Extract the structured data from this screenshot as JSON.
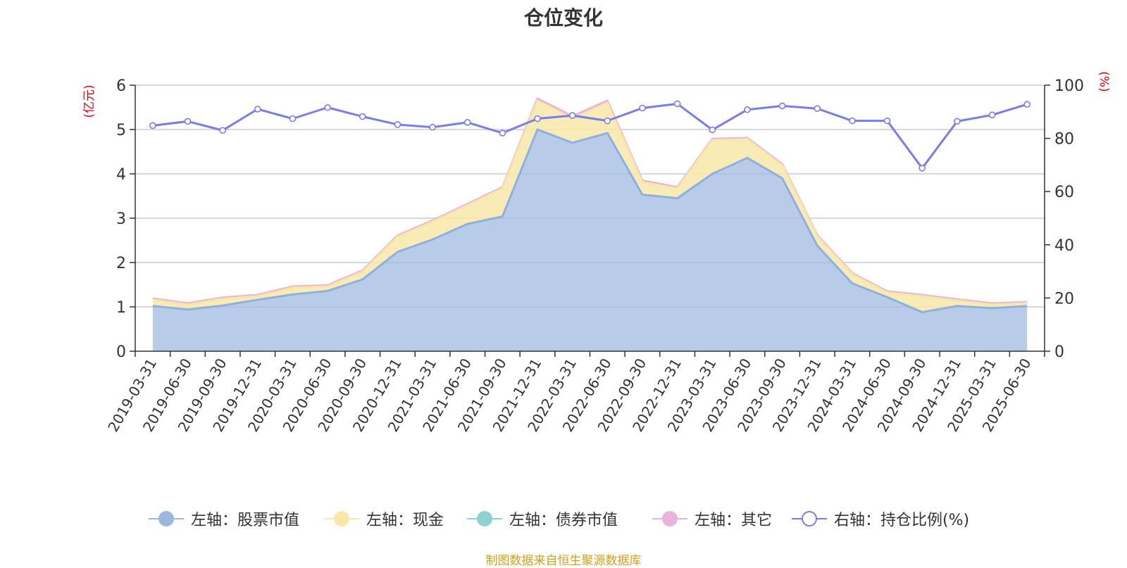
{
  "title": "仓位变化",
  "source_note": "制图数据来自恒生聚源数据库",
  "colors": {
    "stock": "#9cb8e2",
    "stock_line": "#8fb0dc",
    "cash": "#f8e7a8",
    "bond": "#8fd3d1",
    "other": "#e6b4dd",
    "ratio": "#7b7bf0",
    "axis_unit": "#e00000"
  },
  "legend": [
    {
      "label": "左轴：股票市值",
      "color": "#9cb8e2",
      "style": "filled"
    },
    {
      "label": "左轴：现金",
      "color": "#f8e7a8",
      "style": "filled"
    },
    {
      "label": "左轴：债券市值",
      "color": "#8fd3d1",
      "style": "filled"
    },
    {
      "label": "左轴：其它",
      "color": "#e6b4dd",
      "style": "filled"
    },
    {
      "label": "右轴：持仓比例(%)",
      "color": "#7b7bf0",
      "style": "hollow"
    }
  ],
  "chart_data": {
    "type": "area",
    "title": "仓位变化",
    "left_axis": {
      "unit": "(亿元)",
      "ylim": [
        0,
        6
      ],
      "ticks": [
        0,
        1,
        2,
        3,
        4,
        5,
        6
      ]
    },
    "right_axis": {
      "unit": "(%)",
      "ylim": [
        0,
        100
      ],
      "ticks": [
        0,
        20,
        40,
        60,
        80,
        100
      ]
    },
    "grid": true,
    "legend_position": "bottom",
    "categories": [
      "2019-03-31",
      "2019-06-30",
      "2019-09-30",
      "2019-12-31",
      "2020-03-31",
      "2020-06-30",
      "2020-09-30",
      "2020-12-31",
      "2021-03-31",
      "2021-06-30",
      "2021-09-30",
      "2021-12-31",
      "2022-03-31",
      "2022-06-30",
      "2022-09-30",
      "2022-12-31",
      "2023-03-31",
      "2023-06-30",
      "2023-09-30",
      "2023-12-31",
      "2024-03-31",
      "2024-06-30",
      "2024-09-30",
      "2024-12-31",
      "2025-03-31",
      "2025-06-30"
    ],
    "series": [
      {
        "name": "左轴：股票市值",
        "axis": "left",
        "stacked": true,
        "values": [
          1.02,
          0.94,
          1.03,
          1.16,
          1.28,
          1.36,
          1.62,
          2.24,
          2.52,
          2.87,
          3.04,
          5.0,
          4.7,
          4.92,
          3.53,
          3.45,
          4.0,
          4.36,
          3.9,
          2.38,
          1.53,
          1.22,
          0.88,
          1.02,
          0.97,
          1.02
        ]
      },
      {
        "name": "左轴：现金",
        "axis": "left",
        "stacked": true,
        "values": [
          0.14,
          0.11,
          0.15,
          0.08,
          0.15,
          0.1,
          0.17,
          0.34,
          0.4,
          0.42,
          0.63,
          0.65,
          0.55,
          0.68,
          0.28,
          0.22,
          0.76,
          0.42,
          0.29,
          0.21,
          0.2,
          0.1,
          0.36,
          0.12,
          0.08,
          0.06
        ]
      },
      {
        "name": "左轴：债券市值",
        "axis": "left",
        "stacked": true,
        "values": [
          0,
          0,
          0,
          0,
          0,
          0,
          0,
          0,
          0,
          0,
          0,
          0,
          0,
          0,
          0,
          0,
          0,
          0,
          0,
          0,
          0,
          0,
          0,
          0,
          0,
          0
        ]
      },
      {
        "name": "左轴：其它",
        "axis": "left",
        "stacked": true,
        "values": [
          0.03,
          0.03,
          0.03,
          0.03,
          0.03,
          0.03,
          0.03,
          0.03,
          0.03,
          0.03,
          0.03,
          0.05,
          0.05,
          0.05,
          0.04,
          0.03,
          0.03,
          0.03,
          0.03,
          0.03,
          0.03,
          0.03,
          0.03,
          0.03,
          0.03,
          0.03
        ]
      },
      {
        "name": "右轴：持仓比例(%)",
        "axis": "right",
        "type": "line",
        "values": [
          84.8,
          86.4,
          83.0,
          91.0,
          87.4,
          91.6,
          88.2,
          85.2,
          84.2,
          86.0,
          82.0,
          87.4,
          88.6,
          86.6,
          91.4,
          93.0,
          83.2,
          90.8,
          92.2,
          91.2,
          86.6,
          86.6,
          68.8,
          86.4,
          88.8,
          92.8
        ]
      }
    ]
  }
}
